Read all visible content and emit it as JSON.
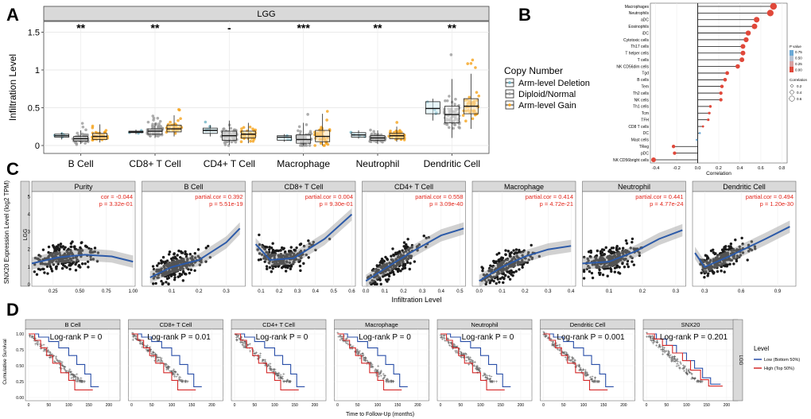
{
  "panelA": {
    "letter": "A",
    "strip": "LGG",
    "ylabel": "Infiltration Level",
    "ylim": [
      0,
      1.6
    ],
    "yticks": [
      0.0,
      0.5,
      1.0,
      1.5
    ],
    "groups": [
      {
        "name": "B Cell",
        "sig": "**",
        "boxes": [
          [
            0.08,
            0.11,
            0.13,
            0.15,
            0.17
          ],
          [
            0.02,
            0.06,
            0.09,
            0.12,
            0.2
          ],
          [
            0.04,
            0.08,
            0.12,
            0.16,
            0.28
          ]
        ]
      },
      {
        "name": "CD8+ T Cell",
        "sig": "**",
        "boxes": [
          [
            0.15,
            0.17,
            0.18,
            0.19,
            0.21
          ],
          [
            0.1,
            0.15,
            0.19,
            0.22,
            0.3
          ],
          [
            0.12,
            0.18,
            0.22,
            0.27,
            0.4
          ]
        ]
      },
      {
        "name": "CD4+ T Cell",
        "sig": "-",
        "boxes": [
          [
            0.12,
            0.16,
            0.2,
            0.23,
            0.27
          ],
          [
            0.01,
            0.07,
            0.13,
            0.19,
            0.33
          ],
          [
            0.03,
            0.1,
            0.15,
            0.19,
            0.3
          ]
        ]
      },
      {
        "name": "Macrophage",
        "sig": "***",
        "boxes": [
          [
            0.05,
            0.07,
            0.11,
            0.13,
            0.15
          ],
          [
            0.0,
            0.03,
            0.08,
            0.14,
            0.3
          ],
          [
            0.0,
            0.05,
            0.12,
            0.2,
            0.42
          ]
        ]
      },
      {
        "name": "Neutrophil",
        "sig": "**",
        "boxes": [
          [
            0.09,
            0.11,
            0.14,
            0.17,
            0.2
          ],
          [
            0.02,
            0.07,
            0.1,
            0.13,
            0.2
          ],
          [
            0.05,
            0.09,
            0.13,
            0.16,
            0.25
          ]
        ]
      },
      {
        "name": "Dendritic Cell",
        "sig": "**",
        "boxes": [
          [
            0.33,
            0.42,
            0.49,
            0.58,
            0.62
          ],
          [
            0.1,
            0.3,
            0.41,
            0.52,
            0.88
          ],
          [
            0.22,
            0.42,
            0.52,
            0.62,
            0.95
          ]
        ]
      }
    ],
    "legend": {
      "title": "Copy Number",
      "items": [
        "Arm-level Deletion",
        "Diploid/Normal",
        "Arm-level Gain"
      ],
      "colors": [
        "#6fb3c4",
        "#9a9a9a",
        "#f5a21c"
      ]
    }
  },
  "panelB": {
    "letter": "B",
    "xlabel": "Correlation",
    "xlim": [
      -0.45,
      0.85
    ],
    "xticks": [
      "-0.4",
      "-0.2",
      "0.0",
      "0.2",
      "0.4",
      "0.6",
      "0.8"
    ],
    "xtick_values": [
      -0.4,
      -0.2,
      0.0,
      0.2,
      0.4,
      0.6,
      0.8
    ],
    "cells": [
      "Macrophages",
      "Neutrophils",
      "aDC",
      "Eosinophils",
      "iDC",
      "Cytotoxic cells",
      "Th17 cells",
      "T helper cells",
      "T cells",
      "NK CD56dim cells",
      "Tgd",
      "B cells",
      "Tem",
      "Th2 cells",
      "NK cells",
      "Th1 cells",
      "Tcm",
      "TFH",
      "CD8 T cells",
      "DC",
      "Mast cells",
      "TReg",
      "pDC",
      "NK CD56bright cells"
    ],
    "correlations": [
      0.72,
      0.69,
      0.56,
      0.54,
      0.48,
      0.46,
      0.43,
      0.43,
      0.42,
      0.38,
      0.28,
      0.26,
      0.23,
      0.22,
      0.22,
      0.12,
      0.11,
      0.1,
      0.05,
      0.02,
      -0.01,
      -0.23,
      -0.22,
      -0.42
    ],
    "legend_pvalue": {
      "title": "P value",
      "labels": [
        "0.75",
        "0.50",
        "0.25",
        "0.00"
      ]
    },
    "legend_corr": {
      "title": "Correlation",
      "labels": [
        "0.2",
        "0.4",
        "0.6"
      ]
    },
    "dot_color": "#e0483a"
  },
  "panelC": {
    "letter": "C",
    "ylabel": "SNX20 Expression Level (log2 TPM)",
    "xlabel": "Infiltration Level",
    "side_strip": "LGG",
    "yticks": [
      "0",
      "1",
      "2",
      "3",
      "4",
      "5"
    ],
    "panels": [
      {
        "title": "Purity",
        "stat1": "cor = -0.044",
        "stat2": "p = 3.32e-01",
        "xlim": [
          0.05,
          1.02
        ],
        "xticks": [
          "0.25",
          "0.50",
          "0.75",
          "1.00"
        ],
        "xtick_values": [
          0.25,
          0.5,
          0.75,
          1.0
        ]
      },
      {
        "title": "B Cell",
        "stat1": "partial.cor = 0.392",
        "stat2": "p = 5.51e-19",
        "xlim": [
          -0.01,
          0.37
        ],
        "xticks": [
          "0.1",
          "0.2",
          "0.3"
        ],
        "xtick_values": [
          0.1,
          0.2,
          0.3
        ]
      },
      {
        "title": "CD8+ T Cell",
        "stat1": "partial.cor = 0.004",
        "stat2": "p = 9.30e-01",
        "xlim": [
          0.05,
          0.62
        ],
        "xticks": [
          "0.1",
          "0.2",
          "0.3",
          "0.4",
          "0.5",
          "0.6"
        ],
        "xtick_values": [
          0.1,
          0.2,
          0.3,
          0.4,
          0.5,
          0.6
        ]
      },
      {
        "title": "CD4+ T Cell",
        "stat1": "partial.cor = 0.558",
        "stat2": "p = 3.09e-40",
        "xlim": [
          -0.02,
          0.53
        ],
        "xticks": [
          "0.0",
          "0.1",
          "0.2",
          "0.3",
          "0.4",
          "0.5"
        ],
        "xtick_values": [
          0.0,
          0.1,
          0.2,
          0.3,
          0.4,
          0.5
        ]
      },
      {
        "title": "Macrophage",
        "stat1": "partial.cor = 0.414",
        "stat2": "p = 4.72e-21",
        "xlim": [
          -0.03,
          0.42
        ],
        "xticks": [
          "0.0",
          "0.1",
          "0.2",
          "0.3",
          "0.4"
        ],
        "xtick_values": [
          0.0,
          0.1,
          0.2,
          0.3,
          0.4
        ]
      },
      {
        "title": "Neutrophil",
        "stat1": "partial.cor = 0.441",
        "stat2": "p = 4.77e-24",
        "xlim": [
          0.02,
          0.33
        ],
        "xticks": [
          "0.1",
          "0.2",
          "0.3"
        ],
        "xtick_values": [
          0.1,
          0.2,
          0.3
        ]
      },
      {
        "title": "Dendritic Cell",
        "stat1": "partial.cor = 0.494",
        "stat2": "p = 1.20e-30",
        "xlim": [
          0.2,
          1.05
        ],
        "xticks": [
          "0.3",
          "0.6",
          "0.9"
        ],
        "xtick_values": [
          0.3,
          0.6,
          0.9
        ]
      }
    ]
  },
  "panelD": {
    "letter": "D",
    "ylabel": "Cumulative Survival",
    "xlabel": "Time to Follow-Up (months)",
    "side_strip": "LGG",
    "yticks": [
      "0.00",
      "0.25",
      "0.50",
      "0.75",
      "1.00"
    ],
    "xticks": [
      "0",
      "50",
      "100",
      "150",
      "200"
    ],
    "panels": [
      {
        "title": "B Cell",
        "stat": "Log-rank P = 0"
      },
      {
        "title": "CD8+ T Cell",
        "stat": "Log-rank P = 0.01"
      },
      {
        "title": "CD4+ T Cell",
        "stat": "Log-rank P = 0"
      },
      {
        "title": "Macrophage",
        "stat": "Log-rank P = 0"
      },
      {
        "title": "Neutrophil",
        "stat": "Log-rank P = 0"
      },
      {
        "title": "Dendritic Cell",
        "stat": "Log-rank P = 0.001"
      },
      {
        "title": "SNX20",
        "stat": "Log-rank P = 0.201"
      }
    ],
    "legend": {
      "title": "Level",
      "items": [
        "Low (Bottom 50%)",
        "High (Top 50%)"
      ],
      "colors": [
        "#2a4fa8",
        "#d42a2a"
      ]
    }
  },
  "chart_data": [
    {
      "type": "box",
      "categories": [
        "B Cell",
        "CD8+ T Cell",
        "CD4+ T Cell",
        "Macrophage",
        "Neutrophil",
        "Dendritic Cell"
      ],
      "series": [
        {
          "name": "Arm-level Deletion"
        },
        {
          "name": "Diploid/Normal"
        },
        {
          "name": "Arm-level Gain"
        }
      ],
      "ylabel": "Infiltration Level",
      "ylim": [
        0,
        1.6
      ]
    },
    {
      "type": "lollipop",
      "xlabel": "Correlation",
      "xlim": [
        -0.45,
        0.85
      ]
    },
    {
      "type": "scatter",
      "xlabel": "Infiltration Level",
      "ylabel": "SNX20 Expression Level (log2 TPM)",
      "ylim": [
        0,
        5
      ]
    },
    {
      "type": "line",
      "xlabel": "Time to Follow-Up (months)",
      "ylabel": "Cumulative Survival",
      "xlim": [
        0,
        220
      ],
      "ylim": [
        0,
        1
      ]
    }
  ]
}
